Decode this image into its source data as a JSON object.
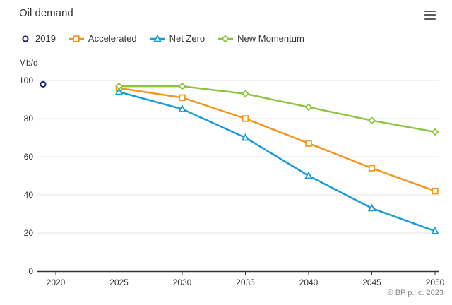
{
  "title": "Oil demand",
  "menu_icon": "hamburger-menu-icon",
  "unit_label": "Mb/d",
  "copyright": "© BP p.l.c. 2023",
  "chart_data": {
    "type": "line",
    "title": "Oil demand",
    "ylabel": "Mb/d",
    "xlabel": "",
    "categories": [
      "2020",
      "2025",
      "2030",
      "2035",
      "2040",
      "2045",
      "2050"
    ],
    "ylim": [
      0,
      100
    ],
    "yticks": [
      0,
      20,
      40,
      60,
      80,
      100
    ],
    "grid": true,
    "legend_position": "top-left",
    "series": [
      {
        "name": "2019",
        "color": "#1a1f7a",
        "marker": "circle",
        "values": [
          98,
          null,
          null,
          null,
          null,
          null,
          null
        ]
      },
      {
        "name": "Accelerated",
        "color": "#f7941d",
        "marker": "square",
        "values": [
          null,
          96,
          91,
          80,
          67,
          54,
          42
        ]
      },
      {
        "name": "Net Zero",
        "color": "#1a9ad7",
        "marker": "triangle",
        "values": [
          null,
          94,
          85,
          70,
          50,
          33,
          21
        ]
      },
      {
        "name": "New Momentum",
        "color": "#8cc63f",
        "marker": "diamond",
        "values": [
          null,
          97,
          97,
          93,
          86,
          79,
          73
        ]
      }
    ]
  }
}
